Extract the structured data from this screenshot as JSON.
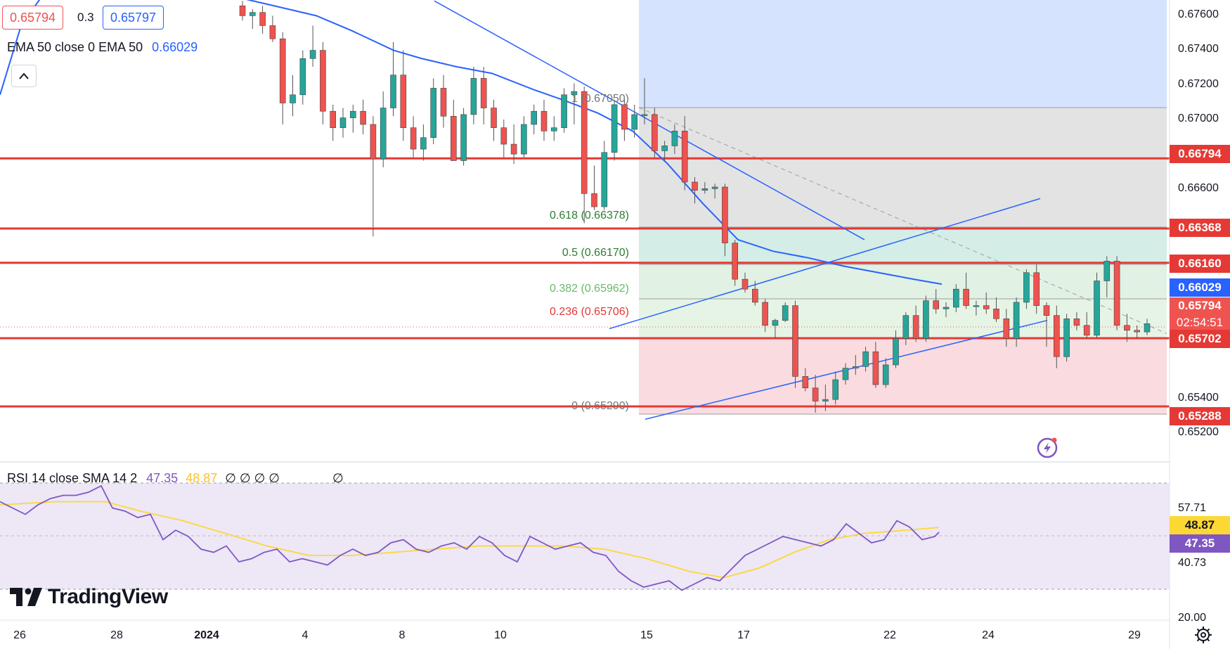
{
  "legend": {
    "bid": "0.65794",
    "spread": "0.3",
    "ask": "0.65797",
    "ema_label": "EMA 50 close 0 EMA 50",
    "ema_value": "0.66029",
    "rsi_label": "RSI 14 close SMA 14 2",
    "rsi_value": "47.35",
    "rsi_sma_value": "48.87",
    "rsi_extra": "∅ ∅ ∅ ∅",
    "rsi_extra2": "∅"
  },
  "brand": {
    "name": "TradingView"
  },
  "colors": {
    "bull": "#26a69a",
    "bear": "#ef5350",
    "level": "#e53935",
    "ema": "#2962ff",
    "trend": "#2962ff",
    "rsi": "#7e57c2",
    "rsi_sma": "#fdd835"
  },
  "price_axis": {
    "ticks": [
      "0.67600",
      "0.67400",
      "0.67200",
      "0.67000",
      "0.66600",
      "0.65400",
      "0.65200"
    ],
    "labels": [
      {
        "text": "0.66794",
        "color": "#e53935"
      },
      {
        "text": "0.66368",
        "color": "#e53935"
      },
      {
        "text": "0.66160",
        "color": "#e53935"
      },
      {
        "text": "0.66029",
        "color": "#2962ff"
      },
      {
        "text": "0.65794",
        "color": "#ef5350"
      },
      {
        "text": "02:54:51",
        "color": "#ef5350"
      },
      {
        "text": "0.65702",
        "color": "#e53935"
      },
      {
        "text": "0.65288",
        "color": "#e53935"
      }
    ]
  },
  "time_axis": [
    "26",
    "28",
    "2024",
    "4",
    "8",
    "10",
    "15",
    "17",
    "22",
    "24",
    "29"
  ],
  "rsi_axis": {
    "ticks": [
      "57.71",
      "40.73",
      "20.00"
    ],
    "labels": [
      {
        "text": "48.87",
        "color": "#fdd835"
      },
      {
        "text": "47.35",
        "color": "#7e57c2"
      }
    ]
  },
  "fib_labels": [
    "1 (0.67050)",
    "0.618 (0.66378)",
    "0.5 (0.66170)",
    "0.382 (0.65962)",
    "0.236 (0.65706)",
    "0 (0.65290)"
  ],
  "chart_data": {
    "type": "candlestick",
    "symbol": "",
    "price_range": [
      0.651,
      0.677
    ],
    "support_resistance": [
      0.66794,
      0.66368,
      0.6616,
      0.65702,
      0.65288
    ],
    "fibonacci": [
      {
        "ratio": 1,
        "price": 0.6705
      },
      {
        "ratio": 0.618,
        "price": 0.66378
      },
      {
        "ratio": 0.5,
        "price": 0.6617
      },
      {
        "ratio": 0.382,
        "price": 0.65962
      },
      {
        "ratio": 0.236,
        "price": 0.65706
      },
      {
        "ratio": 0,
        "price": 0.6529
      }
    ],
    "ema50_last": 0.66029,
    "last_price": 0.65794,
    "candles": [
      [
        0.6772,
        0.6775,
        0.6763,
        0.6766
      ],
      [
        0.6766,
        0.677,
        0.6758,
        0.6768
      ],
      [
        0.6768,
        0.6772,
        0.6755,
        0.676
      ],
      [
        0.676,
        0.6766,
        0.675,
        0.6752
      ],
      [
        0.6752,
        0.6756,
        0.67,
        0.6713
      ],
      [
        0.6713,
        0.673,
        0.6705,
        0.6718
      ],
      [
        0.6718,
        0.6745,
        0.6712,
        0.674
      ],
      [
        0.674,
        0.676,
        0.6735,
        0.6745
      ],
      [
        0.6745,
        0.675,
        0.67,
        0.6708
      ],
      [
        0.6708,
        0.6712,
        0.669,
        0.6698
      ],
      [
        0.6698,
        0.671,
        0.6692,
        0.6704
      ],
      [
        0.6704,
        0.6712,
        0.6695,
        0.6708
      ],
      [
        0.6708,
        0.6715,
        0.6694,
        0.67
      ],
      [
        0.67,
        0.6705,
        0.6632,
        0.6679
      ],
      [
        0.6679,
        0.672,
        0.6674,
        0.671
      ],
      [
        0.671,
        0.675,
        0.6705,
        0.673
      ],
      [
        0.673,
        0.6745,
        0.669,
        0.6698
      ],
      [
        0.6698,
        0.6705,
        0.668,
        0.6685
      ],
      [
        0.6685,
        0.67,
        0.6678,
        0.6692
      ],
      [
        0.6692,
        0.6728,
        0.6688,
        0.6722
      ],
      [
        0.6722,
        0.673,
        0.6698,
        0.6705
      ],
      [
        0.6705,
        0.6715,
        0.668,
        0.6678
      ],
      [
        0.6678,
        0.671,
        0.6675,
        0.6706
      ],
      [
        0.6706,
        0.6735,
        0.67,
        0.6728
      ],
      [
        0.6728,
        0.6735,
        0.67,
        0.671
      ],
      [
        0.671,
        0.6715,
        0.669,
        0.6698
      ],
      [
        0.6698,
        0.6703,
        0.668,
        0.6688
      ],
      [
        0.6688,
        0.67,
        0.6676,
        0.6682
      ],
      [
        0.6682,
        0.6705,
        0.668,
        0.67
      ],
      [
        0.67,
        0.6712,
        0.6694,
        0.6708
      ],
      [
        0.6708,
        0.6715,
        0.669,
        0.6696
      ],
      [
        0.6696,
        0.6705,
        0.669,
        0.6698
      ],
      [
        0.6698,
        0.6722,
        0.6695,
        0.6718
      ],
      [
        0.6718,
        0.6725,
        0.67,
        0.672
      ],
      [
        0.672,
        0.6723,
        0.664,
        0.6658
      ],
      [
        0.6658,
        0.6675,
        0.6648,
        0.665
      ],
      [
        0.665,
        0.669,
        0.6648,
        0.6683
      ],
      [
        0.6683,
        0.6715,
        0.6678,
        0.6712
      ],
      [
        0.6712,
        0.6716,
        0.669,
        0.6697
      ],
      [
        0.6697,
        0.6712,
        0.6692,
        0.6706
      ],
      [
        0.6706,
        0.6728,
        0.67,
        0.6706
      ],
      [
        0.6706,
        0.671,
        0.668,
        0.6684
      ],
      [
        0.6684,
        0.669,
        0.6678,
        0.6687
      ],
      [
        0.6687,
        0.67,
        0.6682,
        0.6696
      ],
      [
        0.6696,
        0.6705,
        0.666,
        0.6665
      ],
      [
        0.6665,
        0.6668,
        0.6652,
        0.666
      ],
      [
        0.666,
        0.6665,
        0.6658,
        0.6661
      ],
      [
        0.6661,
        0.6664,
        0.6655,
        0.6662
      ],
      [
        0.6662,
        0.6664,
        0.662,
        0.6628
      ],
      [
        0.6628,
        0.663,
        0.6602,
        0.6606
      ],
      [
        0.6606,
        0.661,
        0.6598,
        0.66
      ],
      [
        0.66,
        0.6605,
        0.659,
        0.6592
      ],
      [
        0.6592,
        0.6594,
        0.6574,
        0.6578
      ],
      [
        0.6578,
        0.6582,
        0.657,
        0.6581
      ],
      [
        0.6581,
        0.6592,
        0.658,
        0.659
      ],
      [
        0.659,
        0.6593,
        0.654,
        0.6547
      ],
      [
        0.6547,
        0.6552,
        0.6538,
        0.654
      ],
      [
        0.654,
        0.6548,
        0.6525,
        0.6532
      ],
      [
        0.6532,
        0.6542,
        0.6526,
        0.6533
      ],
      [
        0.6533,
        0.655,
        0.653,
        0.6545
      ],
      [
        0.6545,
        0.6555,
        0.6542,
        0.6552
      ],
      [
        0.6552,
        0.656,
        0.6548,
        0.6553
      ],
      [
        0.6553,
        0.6565,
        0.655,
        0.6562
      ],
      [
        0.6562,
        0.6568,
        0.654,
        0.6542
      ],
      [
        0.6542,
        0.6558,
        0.654,
        0.6554
      ],
      [
        0.6554,
        0.6575,
        0.6552,
        0.657
      ],
      [
        0.657,
        0.6586,
        0.6566,
        0.6584
      ],
      [
        0.6584,
        0.659,
        0.6568,
        0.657
      ],
      [
        0.657,
        0.6596,
        0.6568,
        0.6593
      ],
      [
        0.6593,
        0.66,
        0.6585,
        0.6588
      ],
      [
        0.6588,
        0.6592,
        0.6583,
        0.6589
      ],
      [
        0.6589,
        0.6603,
        0.6586,
        0.66
      ],
      [
        0.66,
        0.661,
        0.6588,
        0.659
      ],
      [
        0.659,
        0.6593,
        0.6584,
        0.659
      ],
      [
        0.659,
        0.6598,
        0.6585,
        0.6588
      ],
      [
        0.6588,
        0.6595,
        0.658,
        0.6582
      ],
      [
        0.6582,
        0.6588,
        0.6565,
        0.657
      ],
      [
        0.657,
        0.6595,
        0.6565,
        0.6592
      ],
      [
        0.6592,
        0.6612,
        0.6588,
        0.661
      ],
      [
        0.661,
        0.6615,
        0.6585,
        0.659
      ],
      [
        0.659,
        0.6592,
        0.6565,
        0.6584
      ],
      [
        0.6584,
        0.659,
        0.6552,
        0.6559
      ],
      [
        0.6559,
        0.6585,
        0.6556,
        0.6582
      ],
      [
        0.6582,
        0.6586,
        0.6575,
        0.6578
      ],
      [
        0.6578,
        0.6586,
        0.657,
        0.6572
      ],
      [
        0.6572,
        0.661,
        0.657,
        0.6605
      ],
      [
        0.6605,
        0.662,
        0.6595,
        0.6617
      ],
      [
        0.6617,
        0.662,
        0.6575,
        0.6578
      ],
      [
        0.6578,
        0.6585,
        0.6568,
        0.6575
      ],
      [
        0.6575,
        0.6578,
        0.657,
        0.6574
      ],
      [
        0.6574,
        0.6582,
        0.6572,
        0.6579
      ]
    ],
    "ema50": [
      [
        0,
        0.6718
      ],
      [
        30,
        0.676
      ],
      [
        60,
        0.6778
      ],
      [
        100,
        0.679
      ],
      [
        140,
        0.679
      ],
      [
        200,
        0.6787
      ],
      [
        260,
        0.6783
      ],
      [
        330,
        0.6778
      ],
      [
        400,
        0.6771
      ],
      [
        450,
        0.6766
      ],
      [
        500,
        0.6757
      ],
      [
        560,
        0.6745
      ],
      [
        600,
        0.674
      ],
      [
        650,
        0.6735
      ],
      [
        700,
        0.6731
      ],
      [
        760,
        0.6721
      ],
      [
        800,
        0.6715
      ],
      [
        850,
        0.6707
      ],
      [
        900,
        0.6696
      ],
      [
        950,
        0.6676
      ],
      [
        1000,
        0.6652
      ],
      [
        1050,
        0.663
      ],
      [
        1100,
        0.6623
      ],
      [
        1150,
        0.6619
      ],
      [
        1200,
        0.6614
      ],
      [
        1250,
        0.661
      ],
      [
        1300,
        0.6606
      ],
      [
        1340,
        0.6603
      ]
    ],
    "trendlines": [
      {
        "from": [
          618,
          0.6775
        ],
        "to": [
          1230,
          0.663
        ]
      },
      {
        "from": [
          867,
          0.6576
        ],
        "to": [
          1480,
          0.6655
        ]
      },
      {
        "from": [
          918,
          0.6521
        ],
        "to": [
          1490,
          0.6581
        ]
      }
    ],
    "rsi": {
      "range": [
        20,
        80
      ],
      "overbought": 70,
      "oversold": 30,
      "rsi14": [
        [
          0,
          57
        ],
        [
          18,
          55
        ],
        [
          36,
          53
        ],
        [
          54,
          56
        ],
        [
          72,
          58
        ],
        [
          90,
          59
        ],
        [
          108,
          59
        ],
        [
          126,
          60
        ],
        [
          144,
          62
        ],
        [
          160,
          55
        ],
        [
          178,
          54
        ],
        [
          196,
          52
        ],
        [
          214,
          53
        ],
        [
          232,
          45
        ],
        [
          250,
          48
        ],
        [
          268,
          46
        ],
        [
          286,
          42
        ],
        [
          304,
          41
        ],
        [
          322,
          43
        ],
        [
          340,
          38
        ],
        [
          358,
          39
        ],
        [
          376,
          41
        ],
        [
          394,
          42
        ],
        [
          412,
          38
        ],
        [
          430,
          39
        ],
        [
          448,
          38
        ],
        [
          466,
          37
        ],
        [
          484,
          40
        ],
        [
          502,
          42
        ],
        [
          520,
          40
        ],
        [
          538,
          41
        ],
        [
          556,
          44
        ],
        [
          574,
          45
        ],
        [
          592,
          42
        ],
        [
          610,
          41
        ],
        [
          628,
          43
        ],
        [
          646,
          44
        ],
        [
          664,
          42
        ],
        [
          682,
          46
        ],
        [
          700,
          44
        ],
        [
          718,
          40
        ],
        [
          736,
          38
        ],
        [
          754,
          46
        ],
        [
          772,
          44
        ],
        [
          790,
          42
        ],
        [
          808,
          43
        ],
        [
          826,
          44
        ],
        [
          844,
          41
        ],
        [
          862,
          40
        ],
        [
          880,
          35
        ],
        [
          898,
          32
        ],
        [
          916,
          30
        ],
        [
          934,
          31
        ],
        [
          952,
          32
        ],
        [
          970,
          29
        ],
        [
          988,
          31
        ],
        [
          1006,
          33
        ],
        [
          1024,
          32
        ],
        [
          1042,
          36
        ],
        [
          1060,
          40
        ],
        [
          1078,
          42
        ],
        [
          1096,
          44
        ],
        [
          1114,
          46
        ],
        [
          1132,
          45
        ],
        [
          1150,
          44
        ],
        [
          1168,
          43
        ],
        [
          1186,
          45
        ],
        [
          1204,
          50
        ],
        [
          1222,
          47
        ],
        [
          1240,
          44
        ],
        [
          1258,
          45
        ],
        [
          1276,
          51
        ],
        [
          1294,
          49
        ],
        [
          1312,
          45
        ],
        [
          1330,
          46
        ],
        [
          1336,
          47.35
        ]
      ],
      "sma14": [
        [
          0,
          56
        ],
        [
          80,
          57
        ],
        [
          150,
          57
        ],
        [
          200,
          54
        ],
        [
          260,
          51
        ],
        [
          320,
          47
        ],
        [
          380,
          43
        ],
        [
          440,
          40
        ],
        [
          500,
          40
        ],
        [
          560,
          41
        ],
        [
          620,
          42
        ],
        [
          680,
          43
        ],
        [
          740,
          43
        ],
        [
          800,
          43
        ],
        [
          860,
          42
        ],
        [
          920,
          39
        ],
        [
          980,
          35
        ],
        [
          1030,
          33
        ],
        [
          1080,
          36
        ],
        [
          1130,
          41
        ],
        [
          1180,
          45
        ],
        [
          1230,
          47
        ],
        [
          1290,
          48
        ],
        [
          1336,
          48.87
        ]
      ]
    }
  }
}
